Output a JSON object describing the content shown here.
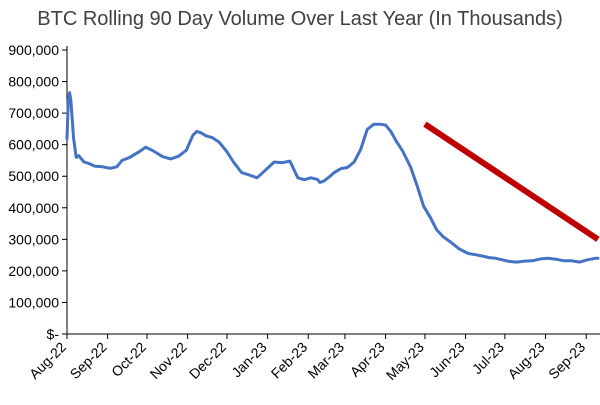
{
  "chart_data": {
    "type": "line",
    "title": "BTC Rolling 90 Day Volume Over Last Year (In Thousands)",
    "xlabel": "",
    "ylabel": "",
    "grid": false,
    "legend": "none",
    "colors": {
      "series": "#4472C4",
      "trendline": "#C00000",
      "axis": "#000000",
      "title": "#404040"
    },
    "x_ticks": [
      "Aug-22",
      "Sep-22",
      "Oct-22",
      "Nov-22",
      "Dec-22",
      "Jan-23",
      "Feb-23",
      "Mar-23",
      "Apr-23",
      "May-23",
      "Jun-23",
      "Jul-23",
      "Aug-23",
      "Sep-23"
    ],
    "y_ticks": [
      {
        "value": 0,
        "label": "$-"
      },
      {
        "value": 100000,
        "label": "100,000"
      },
      {
        "value": 200000,
        "label": "200,000"
      },
      {
        "value": 300000,
        "label": "300,000"
      },
      {
        "value": 400000,
        "label": "400,000"
      },
      {
        "value": 500000,
        "label": "500,000"
      },
      {
        "value": 600000,
        "label": "600,000"
      },
      {
        "value": 700000,
        "label": "700,000"
      },
      {
        "value": 800000,
        "label": "800,000"
      },
      {
        "value": 900000,
        "label": "900,000"
      }
    ],
    "ylim": [
      0,
      900000
    ],
    "xlim": [
      "2022-08-01",
      "2023-09-10"
    ],
    "series": [
      {
        "x": [
          "2022-08-01",
          "2022-08-02",
          "2022-08-03",
          "2022-08-04",
          "2022-08-06",
          "2022-08-08",
          "2022-08-10",
          "2022-08-14",
          "2022-08-18",
          "2022-08-22",
          "2022-08-28",
          "2022-09-03",
          "2022-09-08",
          "2022-09-12",
          "2022-09-18",
          "2022-09-24",
          "2022-09-30",
          "2022-10-05",
          "2022-10-09",
          "2022-10-13",
          "2022-10-19",
          "2022-10-25",
          "2022-10-31",
          "2022-11-05",
          "2022-11-08",
          "2022-11-11",
          "2022-11-15",
          "2022-11-20",
          "2022-11-25",
          "2022-12-01",
          "2022-12-06",
          "2022-12-12",
          "2022-12-18",
          "2022-12-24",
          "2022-12-31",
          "2023-01-06",
          "2023-01-12",
          "2023-01-18",
          "2023-01-24",
          "2023-01-29",
          "2023-02-03",
          "2023-02-08",
          "2023-02-10",
          "2023-02-13",
          "2023-02-17",
          "2023-02-21",
          "2023-02-26",
          "2023-03-03",
          "2023-03-08",
          "2023-03-13",
          "2023-03-18",
          "2023-03-23",
          "2023-03-28",
          "2023-04-01",
          "2023-04-05",
          "2023-04-09",
          "2023-04-14",
          "2023-04-20",
          "2023-04-25",
          "2023-04-30",
          "2023-05-05",
          "2023-05-10",
          "2023-05-15",
          "2023-05-21",
          "2023-05-27",
          "2023-06-03",
          "2023-06-09",
          "2023-06-14",
          "2023-06-19",
          "2023-06-24",
          "2023-06-29",
          "2023-07-04",
          "2023-07-10",
          "2023-07-16",
          "2023-07-22",
          "2023-07-28",
          "2023-08-03",
          "2023-08-09",
          "2023-08-15",
          "2023-08-21",
          "2023-08-27",
          "2023-09-02",
          "2023-09-08",
          "2023-09-10"
        ],
        "values": [
          620000,
          740000,
          765000,
          740000,
          620000,
          560000,
          565000,
          545000,
          540000,
          532000,
          530000,
          525000,
          530000,
          550000,
          560000,
          575000,
          592000,
          582000,
          572000,
          562000,
          555000,
          563000,
          582000,
          630000,
          642000,
          638000,
          628000,
          622000,
          608000,
          577000,
          545000,
          512000,
          504000,
          495000,
          522000,
          545000,
          543000,
          548000,
          495000,
          489000,
          495000,
          490000,
          480000,
          485000,
          498000,
          512000,
          524000,
          528000,
          545000,
          585000,
          648000,
          665000,
          665000,
          662000,
          642000,
          612000,
          580000,
          530000,
          470000,
          405000,
          370000,
          330000,
          308000,
          290000,
          270000,
          255000,
          251000,
          247000,
          242000,
          240000,
          235000,
          230000,
          228000,
          231000,
          232000,
          238000,
          240000,
          237000,
          232000,
          232000,
          228000,
          235000,
          240000,
          240000
        ]
      }
    ],
    "annotations": [
      {
        "type": "trendline",
        "x1": "2023-05-01",
        "y1": 665000,
        "x2": "2023-09-10",
        "y2": 300000
      }
    ]
  }
}
